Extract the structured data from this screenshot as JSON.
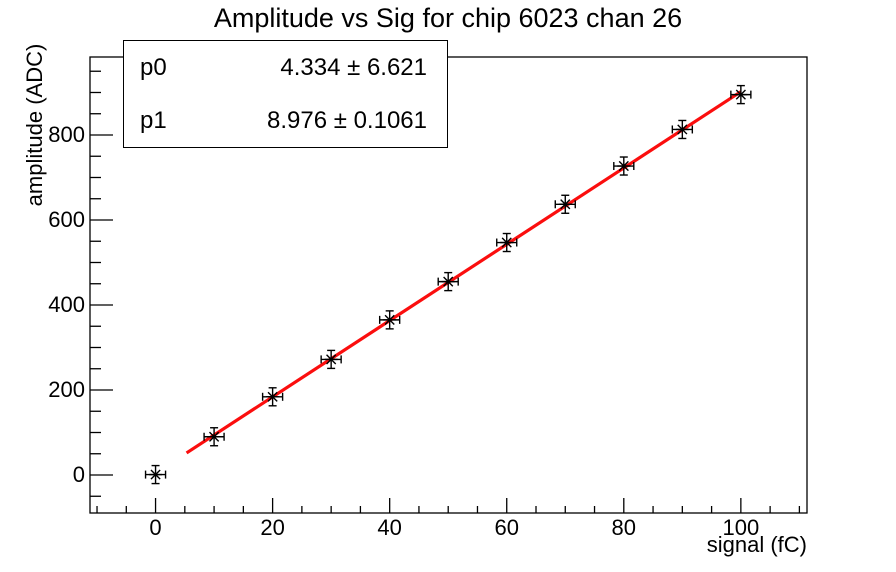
{
  "title": "Amplitude vs Sig for chip 6023 chan 26",
  "stats_box": {
    "rows": [
      {
        "name": "p0",
        "value": "4.334 ± 6.621"
      },
      {
        "name": "p1",
        "value": "8.976 ± 0.1061"
      }
    ]
  },
  "axes": {
    "x": {
      "label": "signal (fC)",
      "range": [
        -11.2,
        111.3
      ],
      "major_ticks": [
        0,
        20,
        40,
        60,
        80,
        100
      ],
      "minor_step": 5
    },
    "y": {
      "label": "amplitude (ADC)",
      "range": [
        -89.4,
        983.5
      ],
      "major_ticks": [
        0,
        200,
        400,
        600,
        800
      ],
      "minor_step": 50
    }
  },
  "chart_data": {
    "type": "scatter",
    "title": "Amplitude vs Sig for chip 6023 chan 26",
    "xlabel": "signal (fC)",
    "ylabel": "amplitude (ADC)",
    "x": [
      0,
      10,
      20,
      30,
      40,
      50,
      60,
      70,
      80,
      90,
      100
    ],
    "y": [
      1,
      90,
      184,
      272,
      365,
      455,
      547,
      637,
      727,
      813,
      895
    ],
    "x_err": 1.7,
    "y_err": 20,
    "marker": "asterisk",
    "marker_color": "#000000",
    "xlim": [
      -11.2,
      111.3
    ],
    "ylim": [
      -89.4,
      983.5
    ],
    "grid": false,
    "legend": false,
    "fit": {
      "type": "linear",
      "p0": 4.334,
      "p1": 8.976,
      "draw_range": [
        5.3,
        100
      ],
      "color": "#fb0e0e",
      "width": 3.2
    }
  },
  "colors": {
    "background": "#ffffff",
    "frame": "#000000",
    "text": "#000000",
    "fit_line": "#fb0e0e",
    "marker": "#000000"
  }
}
